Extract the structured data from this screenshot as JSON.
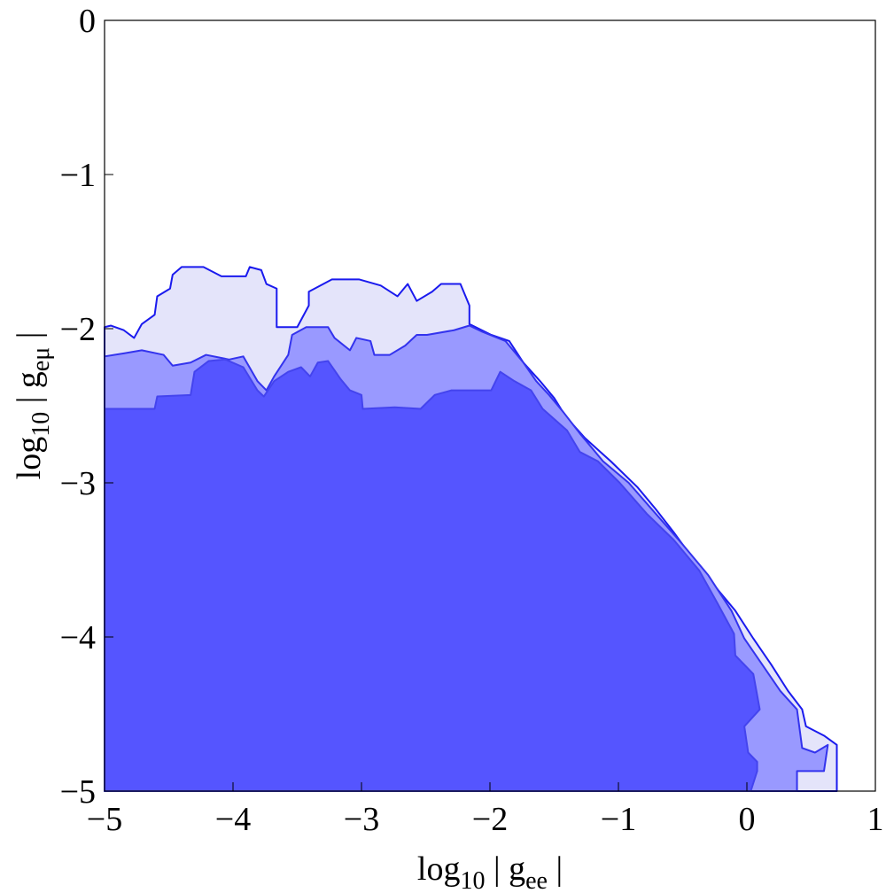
{
  "chart_data": {
    "type": "contour",
    "x_label": [
      "log",
      "10",
      " | g",
      "ee",
      " |"
    ],
    "y_label": [
      "log",
      "10",
      " | g",
      "eμ",
      " |"
    ],
    "xlim": [
      -5,
      1
    ],
    "ylim": [
      -5,
      0
    ],
    "xticks": [
      {
        "value": -5,
        "label": "−5"
      },
      {
        "value": -4,
        "label": "−4"
      },
      {
        "value": -3,
        "label": "−3"
      },
      {
        "value": -2,
        "label": "−2"
      },
      {
        "value": -1,
        "label": "−1"
      },
      0,
      1
    ],
    "yticks": [
      {
        "value": -5,
        "label": "−5"
      },
      {
        "value": -4,
        "label": "−4"
      },
      {
        "value": -3,
        "label": "−3"
      },
      {
        "value": -2,
        "label": "−2"
      },
      {
        "value": -1,
        "label": "−1"
      },
      0
    ],
    "series": [
      {
        "color": "#e4e4fa",
        "edge": "#1a1aee",
        "x": [
          -5.0,
          -4.95,
          -4.85,
          -4.77,
          -4.71,
          -4.61,
          -4.59,
          -4.49,
          -4.47,
          -4.4,
          -4.23,
          -4.09,
          -3.9,
          -3.87,
          -3.78,
          -3.74,
          -3.66,
          -3.66,
          -3.5,
          -3.41,
          -3.41,
          -3.23,
          -3.02,
          -2.85,
          -2.72,
          -2.64,
          -2.57,
          -2.45,
          -2.38,
          -2.23,
          -2.16,
          -2.16,
          -1.99,
          -1.85,
          -1.74,
          -1.61,
          -1.5,
          -1.41,
          -1.26,
          -1.06,
          -0.85,
          -0.71,
          -0.57,
          -0.37,
          -0.23,
          -0.09,
          0.05,
          0.19,
          0.32,
          0.43,
          0.46,
          0.6,
          0.7,
          0.7,
          -5.0
        ],
        "y": [
          -1.99,
          -1.98,
          -2.01,
          -2.06,
          -1.97,
          -1.91,
          -1.79,
          -1.74,
          -1.65,
          -1.6,
          -1.6,
          -1.66,
          -1.66,
          -1.6,
          -1.62,
          -1.71,
          -1.74,
          -1.99,
          -1.99,
          -1.85,
          -1.76,
          -1.68,
          -1.68,
          -1.72,
          -1.79,
          -1.71,
          -1.82,
          -1.76,
          -1.71,
          -1.71,
          -1.85,
          -1.97,
          -2.04,
          -2.08,
          -2.22,
          -2.34,
          -2.45,
          -2.57,
          -2.71,
          -2.86,
          -3.03,
          -3.17,
          -3.32,
          -3.55,
          -3.69,
          -3.83,
          -4.01,
          -4.18,
          -4.35,
          -4.47,
          -4.58,
          -4.64,
          -4.7,
          -5.0,
          -5.0
        ]
      },
      {
        "color": "#9999ff",
        "edge": "#3333ee",
        "x": [
          -5.0,
          -4.85,
          -4.71,
          -4.54,
          -4.47,
          -4.33,
          -4.21,
          -4.03,
          -3.92,
          -3.81,
          -3.74,
          -3.68,
          -3.57,
          -3.54,
          -3.43,
          -3.26,
          -3.21,
          -3.09,
          -3.04,
          -2.93,
          -2.9,
          -2.78,
          -2.66,
          -2.57,
          -2.49,
          -2.28,
          -2.16,
          -2.06,
          -1.88,
          -1.74,
          -1.64,
          -1.54,
          -1.43,
          -1.3,
          -1.12,
          -0.92,
          -0.71,
          -0.5,
          -0.3,
          -0.12,
          -0.02,
          0.12,
          0.26,
          0.39,
          0.43,
          0.53,
          0.63,
          0.6,
          0.39,
          0.39,
          -5.0
        ],
        "y": [
          -2.18,
          -2.16,
          -2.14,
          -2.17,
          -2.24,
          -2.22,
          -2.17,
          -2.2,
          -2.18,
          -2.34,
          -2.4,
          -2.31,
          -2.17,
          -2.04,
          -1.99,
          -1.99,
          -2.06,
          -2.14,
          -2.06,
          -2.08,
          -2.17,
          -2.17,
          -2.11,
          -2.04,
          -2.04,
          -2.01,
          -1.98,
          -2.02,
          -2.08,
          -2.22,
          -2.34,
          -2.43,
          -2.54,
          -2.68,
          -2.86,
          -3.0,
          -3.2,
          -3.4,
          -3.6,
          -3.83,
          -4.01,
          -4.18,
          -4.35,
          -4.47,
          -4.72,
          -4.75,
          -4.7,
          -4.87,
          -4.87,
          -5.0,
          -5.0
        ]
      },
      {
        "color": "#5555ff",
        "edge": "#4444ee",
        "x": [
          -5.0,
          -4.61,
          -4.59,
          -4.33,
          -4.3,
          -4.19,
          -4.06,
          -3.92,
          -3.81,
          -3.76,
          -3.68,
          -3.57,
          -3.47,
          -3.4,
          -3.34,
          -3.26,
          -3.16,
          -3.09,
          -3.0,
          -2.99,
          -2.74,
          -2.54,
          -2.43,
          -2.3,
          -1.99,
          -1.92,
          -1.81,
          -1.68,
          -1.59,
          -1.4,
          -1.3,
          -1.16,
          -0.99,
          -0.78,
          -0.57,
          -0.37,
          -0.23,
          -0.1,
          -0.09,
          0.05,
          0.1,
          -0.02,
          0.01,
          0.08,
          0.08,
          0.03,
          -5.0
        ],
        "y": [
          -2.52,
          -2.52,
          -2.44,
          -2.43,
          -2.28,
          -2.21,
          -2.2,
          -2.25,
          -2.4,
          -2.44,
          -2.34,
          -2.28,
          -2.25,
          -2.31,
          -2.22,
          -2.21,
          -2.33,
          -2.4,
          -2.43,
          -2.52,
          -2.51,
          -2.52,
          -2.43,
          -2.4,
          -2.4,
          -2.28,
          -2.34,
          -2.4,
          -2.52,
          -2.66,
          -2.8,
          -2.86,
          -3.0,
          -3.2,
          -3.37,
          -3.57,
          -3.78,
          -3.98,
          -4.12,
          -4.24,
          -4.47,
          -4.58,
          -4.75,
          -4.81,
          -4.87,
          -5.0,
          -5.0
        ]
      }
    ]
  }
}
